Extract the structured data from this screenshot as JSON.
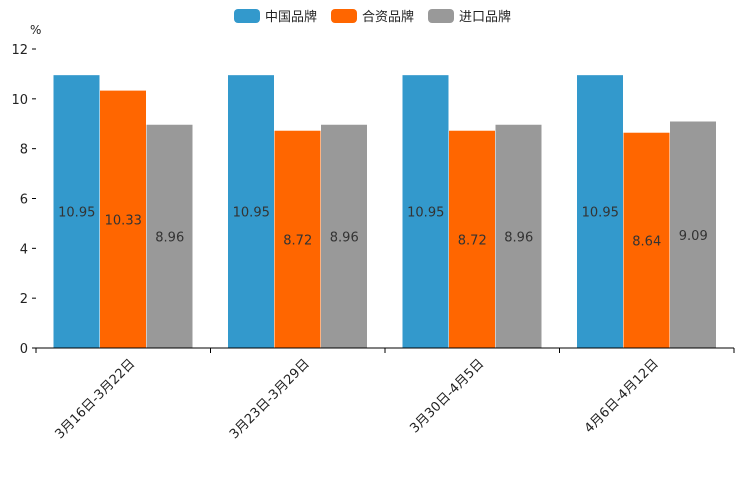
{
  "chart_data": {
    "type": "bar",
    "ylabel": "%",
    "ylim": [
      0,
      12
    ],
    "yticks": [
      0,
      2,
      4,
      6,
      8,
      10,
      12
    ],
    "grid": false,
    "legend_position": "top-center",
    "categories": [
      "3月16日-3月22日",
      "3月23日-3月29日",
      "3月30日-4月5日",
      "4月6日-4月12日"
    ],
    "series": [
      {
        "name": "中国品牌",
        "color": "#3399cc",
        "values": [
          10.95,
          10.95,
          10.95,
          10.95
        ],
        "labels": [
          "10.95",
          "10.95",
          "10.95",
          "10.95"
        ]
      },
      {
        "name": "合资品牌",
        "color": "#ff6600",
        "values": [
          10.33,
          8.72,
          8.72,
          8.64
        ],
        "labels": [
          "10.33",
          "8.72",
          "8.72",
          "8.64"
        ]
      },
      {
        "name": "进口品牌",
        "color": "#999999",
        "values": [
          8.96,
          8.96,
          8.96,
          9.09
        ],
        "labels": [
          "8.96",
          "8.96",
          "8.96",
          "9.09"
        ]
      }
    ]
  }
}
